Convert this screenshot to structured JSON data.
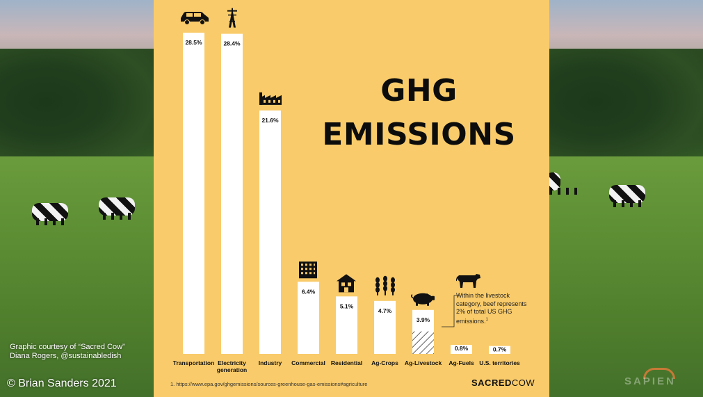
{
  "poster": {
    "title_line1": "GHG",
    "title_line2": "EMISSIONS",
    "footnote": "1. https://www.epa.gov/ghgemissions/sources-greenhouse-gas-emissions#agriculture",
    "logo_part1": "SACRED",
    "logo_part2": "COW",
    "annotation": "Within the livestock category, beef represents 2% of total US GHG emissions.",
    "annotation_ref": "1"
  },
  "credits": {
    "line1": "Graphic courtesy of “Sacred Cow”",
    "line2": "Diana Rogers, @sustainabledish",
    "copyright": "© Brian Sanders 2021",
    "brand": "SAPIEN"
  },
  "colors": {
    "poster_bg": "#f9cb6a",
    "bar_fill": "#ffffff",
    "text": "#111111"
  },
  "chart_data": {
    "type": "bar",
    "categories": [
      "Transportation",
      "Electricity generation",
      "Industry",
      "Commercial",
      "Residential",
      "Ag-Crops",
      "Ag-Livestock",
      "Ag-Fuels",
      "U.S. territories"
    ],
    "values": [
      28.5,
      28.4,
      21.6,
      6.4,
      5.1,
      4.7,
      3.9,
      0.8,
      0.7
    ],
    "value_labels": [
      "28.5%",
      "28.4%",
      "21.6%",
      "6.4%",
      "5.1%",
      "4.7%",
      "3.9%",
      "0.8%",
      "0.7%"
    ],
    "icons": [
      "car-icon",
      "power-tower-icon",
      "factory-icon",
      "office-building-icon",
      "house-icon",
      "wheat-icon",
      "pig-icon",
      "",
      ""
    ],
    "highlight": {
      "category": "Ag-Livestock",
      "segment": "beef",
      "value": 2,
      "pattern": "hatched"
    },
    "ylim": [
      0,
      28.5
    ],
    "grid": false,
    "legend": "none"
  }
}
